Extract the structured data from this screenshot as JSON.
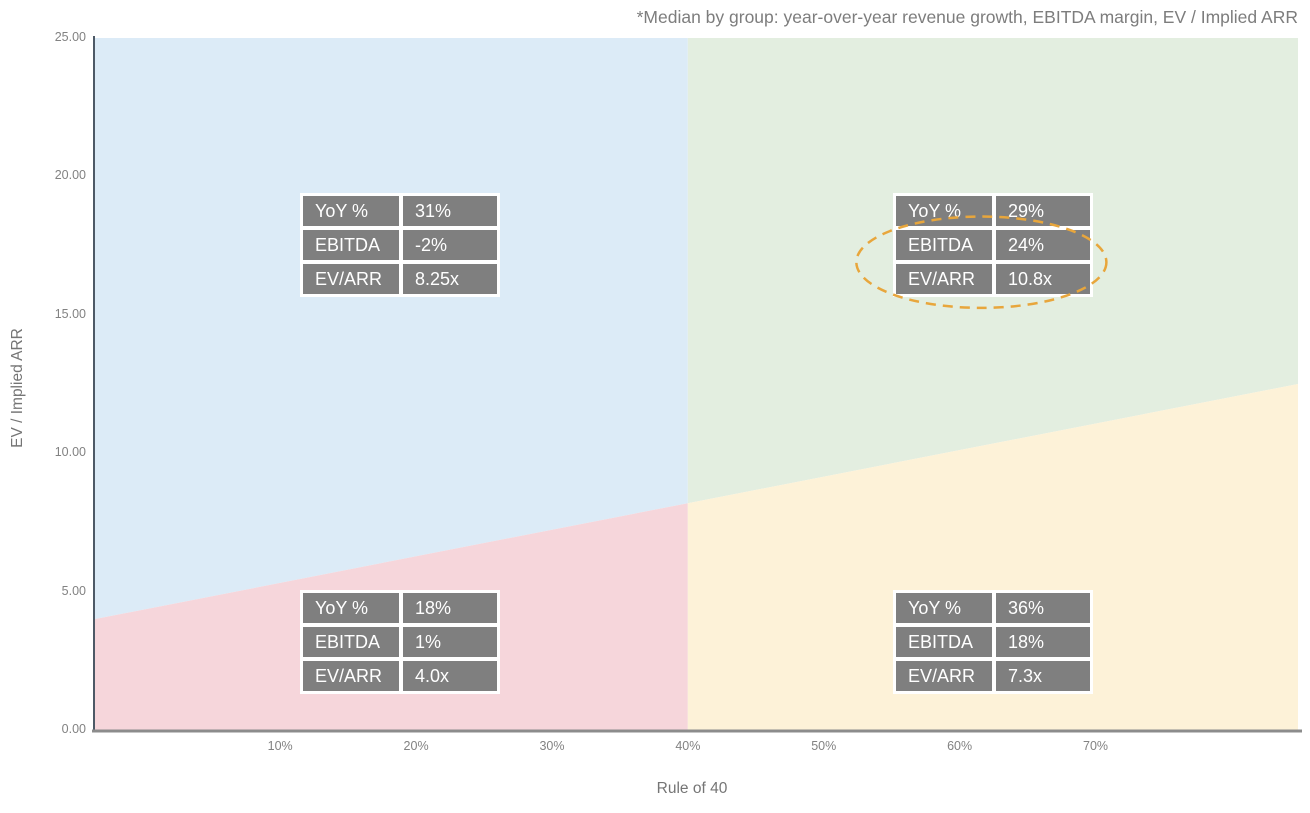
{
  "page": {
    "background": "#ffffff"
  },
  "chart_data": {
    "type": "scatter",
    "subtype": "quadrant-regions",
    "title": "*Median by group: year-over-year revenue growth, EBITDA margin, EV / Implied ARR",
    "xlabel": "Rule of 40",
    "ylabel": "EV / Implied ARR",
    "xlim": [
      -3.7,
      84.9
    ],
    "ylim": [
      0,
      25
    ],
    "grid": false,
    "legend": "none",
    "x_ticks": [
      {
        "v": 10,
        "label": "10%"
      },
      {
        "v": 20,
        "label": "20%"
      },
      {
        "v": 30,
        "label": "30%"
      },
      {
        "v": 40,
        "label": "40%"
      },
      {
        "v": 50,
        "label": "50%"
      },
      {
        "v": 60,
        "label": "60%"
      },
      {
        "v": 70,
        "label": "70%"
      }
    ],
    "y_ticks": [
      {
        "v": 0,
        "label": "0.00"
      },
      {
        "v": 5,
        "label": "5.00"
      },
      {
        "v": 10,
        "label": "10.00"
      },
      {
        "v": 15,
        "label": "15.00"
      },
      {
        "v": 20,
        "label": "20.00"
      },
      {
        "v": 25,
        "label": "25.00"
      }
    ],
    "divider_x": 40,
    "trend_line": {
      "x0": -3.7,
      "y0": 4.0,
      "x1": 84.9,
      "y1": 12.5
    },
    "regions": [
      {
        "id": "upper-left",
        "color": "#dcebf7"
      },
      {
        "id": "upper-right",
        "color": "#e3eee0"
      },
      {
        "id": "lower-left",
        "color": "#f6d6db"
      },
      {
        "id": "lower-right",
        "color": "#fdf2d8"
      }
    ],
    "group_stats": [
      {
        "region": "upper-left",
        "rows": [
          [
            "YoY %",
            "31%"
          ],
          [
            "EBITDA",
            "-2%"
          ],
          [
            "EV/ARR",
            "8.25x"
          ]
        ]
      },
      {
        "region": "upper-right",
        "rows": [
          [
            "YoY %",
            "29%"
          ],
          [
            "EBITDA",
            "24%"
          ],
          [
            "EV/ARR",
            "10.8x"
          ]
        ]
      },
      {
        "region": "lower-left",
        "rows": [
          [
            "YoY %",
            "18%"
          ],
          [
            "EBITDA",
            "1%"
          ],
          [
            "EV/ARR",
            "4.0x"
          ]
        ]
      },
      {
        "region": "lower-right",
        "rows": [
          [
            "YoY %",
            "36%"
          ],
          [
            "EBITDA",
            "18%"
          ],
          [
            "EV/ARR",
            "7.3x"
          ]
        ]
      }
    ],
    "highlight_ellipse": {
      "style": "dashed",
      "color": "#e8a63c",
      "cx": 61.6,
      "cy": 16.9,
      "rx": 9.2,
      "ry": 1.65,
      "around": "upper-right EBITDA and EV/ARR rows"
    },
    "styles": {
      "table_cell_bg": "#7f7f7f",
      "table_text": "#ffffff",
      "axis_line_left": "#4d5966",
      "axis_line_bottom": "#8c8c8c",
      "label_gray": "#7d7d7d"
    }
  }
}
